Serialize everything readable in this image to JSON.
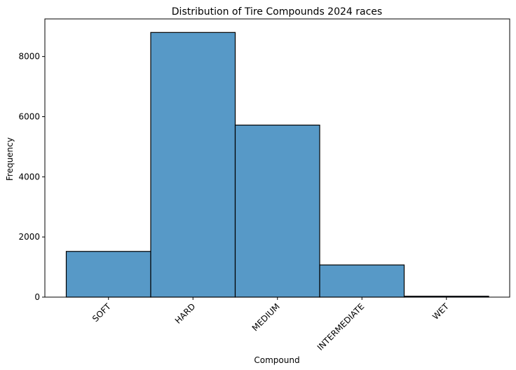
{
  "chart_data": {
    "type": "bar",
    "title": "Distribution of Tire Compounds 2024 races",
    "xlabel": "Compound",
    "ylabel": "Frequency",
    "categories": [
      "SOFT",
      "HARD",
      "MEDIUM",
      "INTERMEDIATE",
      "WET"
    ],
    "values": [
      1520,
      8800,
      5720,
      1070,
      30
    ],
    "ylim": [
      0,
      9250
    ],
    "yticks": [
      0,
      2000,
      4000,
      6000,
      8000
    ],
    "grid": false,
    "bar_color": "#5799c7",
    "edge_color": "#000000"
  }
}
